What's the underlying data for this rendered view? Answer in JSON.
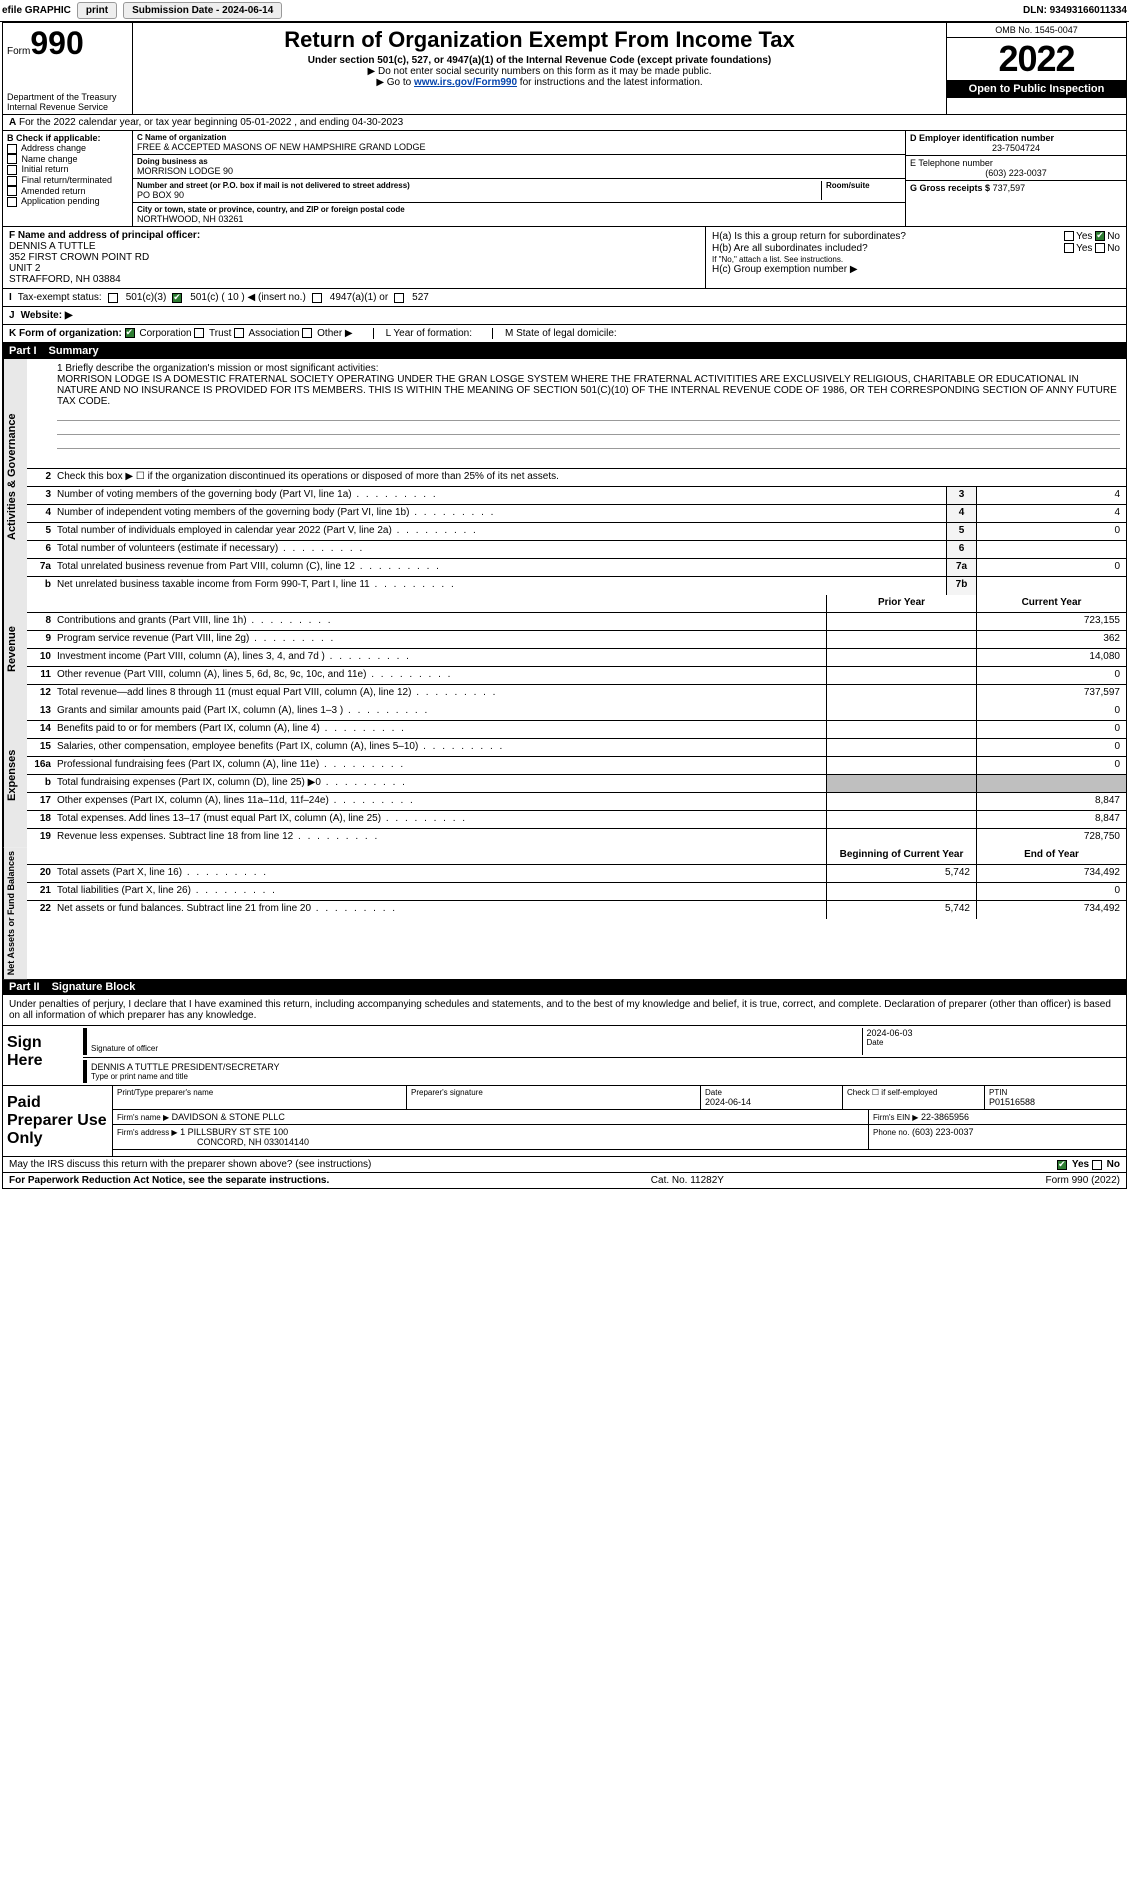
{
  "topbar": {
    "efile": "efile GRAPHIC",
    "print": "print",
    "subdate_label": "Submission Date - 2024-06-14",
    "dln": "DLN: 93493166011334"
  },
  "header": {
    "form_prefix": "Form",
    "form_num": "990",
    "dept": "Department of the Treasury",
    "irs": "Internal Revenue Service",
    "title": "Return of Organization Exempt From Income Tax",
    "sub1": "Under section 501(c), 527, or 4947(a)(1) of the Internal Revenue Code (except private foundations)",
    "sub2": "▶ Do not enter social security numbers on this form as it may be made public.",
    "sub3_pre": "▶ Go to ",
    "sub3_link": "www.irs.gov/Form990",
    "sub3_post": " for instructions and the latest information.",
    "omb": "OMB No. 1545-0047",
    "year": "2022",
    "open": "Open to Public Inspection"
  },
  "line_a": {
    "text": "For the 2022 calendar year, or tax year beginning 05-01-2022    , and ending 04-30-2023"
  },
  "section_b": {
    "header": "B Check if applicable:",
    "items": [
      "Address change",
      "Name change",
      "Initial return",
      "Final return/terminated",
      "Amended return",
      "Application pending"
    ]
  },
  "section_c": {
    "name_label": "C Name of organization",
    "name": "FREE & ACCEPTED MASONS OF NEW HAMPSHIRE GRAND LODGE",
    "dba_label": "Doing business as",
    "dba": "MORRISON LODGE 90",
    "addr_label": "Number and street (or P.O. box if mail is not delivered to street address)",
    "addr": "PO BOX 90",
    "room_label": "Room/suite",
    "city_label": "City or town, state or province, country, and ZIP or foreign postal code",
    "city": "NORTHWOOD, NH  03261"
  },
  "section_d": {
    "label": "D Employer identification number",
    "value": "23-7504724"
  },
  "section_e": {
    "label": "E Telephone number",
    "value": "(603) 223-0037"
  },
  "section_g": {
    "label": "G Gross receipts $",
    "value": "737,597"
  },
  "section_f": {
    "label": "F  Name and address of principal officer:",
    "name": "DENNIS A TUTTLE",
    "addr1": "352 FIRST CROWN POINT RD",
    "addr2": "UNIT 2",
    "city": "STRAFFORD, NH  03884"
  },
  "section_h": {
    "h_a": "H(a)  Is this a group return for subordinates?",
    "h_b": "H(b)  Are all subordinates included?",
    "h_b_note": "If \"No,\" attach a list. See instructions.",
    "h_c": "H(c)  Group exemption number ▶",
    "yes": "Yes",
    "no": "No"
  },
  "row_i": {
    "label": "Tax-exempt status:",
    "opt1": "501(c)(3)",
    "opt2": "501(c) ( 10 ) ◀ (insert no.)",
    "opt3": "4947(a)(1) or",
    "opt4": "527"
  },
  "row_j": {
    "label": "Website: ▶"
  },
  "row_k": {
    "label": "K Form of organization:",
    "opts": [
      "Corporation",
      "Trust",
      "Association",
      "Other ▶"
    ],
    "l": "L Year of formation:",
    "m": "M State of legal domicile:"
  },
  "parts": {
    "p1": "Part I",
    "p1_title": "Summary",
    "p2": "Part II",
    "p2_title": "Signature Block"
  },
  "summary": {
    "q1": "1  Briefly describe the organization's mission or most significant activities:",
    "mission": "MORRISON LODGE IS A DOMESTIC FRATERNAL SOCIETY OPERATING UNDER THE GRAN LOSGE SYSTEM WHERE THE FRATERNAL ACTIVITITIES ARE EXCLUSIVELY RELIGIOUS, CHARITABLE OR EDUCATIONAL IN NATURE AND NO INSURANCE IS PROVIDED FOR ITS MEMBERS. THIS IS WITHIN THE MEANING OF SECTION 501(C)(10) OF THE INTERNAL REVENUE CODE OF 1986, OR TEH CORRESPONDING SECTION OF ANNY FUTURE TAX CODE.",
    "q2": "Check this box ▶ ☐ if the organization discontinued its operations or disposed of more than 25% of its net assets.",
    "lines": [
      {
        "n": "3",
        "t": "Number of voting members of the governing body (Part VI, line 1a)",
        "box": "3",
        "v": "4"
      },
      {
        "n": "4",
        "t": "Number of independent voting members of the governing body (Part VI, line 1b)",
        "box": "4",
        "v": "4"
      },
      {
        "n": "5",
        "t": "Total number of individuals employed in calendar year 2022 (Part V, line 2a)",
        "box": "5",
        "v": "0"
      },
      {
        "n": "6",
        "t": "Total number of volunteers (estimate if necessary)",
        "box": "6",
        "v": ""
      },
      {
        "n": "7a",
        "t": "Total unrelated business revenue from Part VIII, column (C), line 12",
        "box": "7a",
        "v": "0"
      },
      {
        "n": "b",
        "t": "Net unrelated business taxable income from Form 990-T, Part I, line 11",
        "box": "7b",
        "v": ""
      }
    ],
    "col_prior": "Prior Year",
    "col_current": "Current Year",
    "revenue": [
      {
        "n": "8",
        "t": "Contributions and grants (Part VIII, line 1h)",
        "p": "",
        "c": "723,155"
      },
      {
        "n": "9",
        "t": "Program service revenue (Part VIII, line 2g)",
        "p": "",
        "c": "362"
      },
      {
        "n": "10",
        "t": "Investment income (Part VIII, column (A), lines 3, 4, and 7d )",
        "p": "",
        "c": "14,080"
      },
      {
        "n": "11",
        "t": "Other revenue (Part VIII, column (A), lines 5, 6d, 8c, 9c, 10c, and 11e)",
        "p": "",
        "c": "0"
      },
      {
        "n": "12",
        "t": "Total revenue—add lines 8 through 11 (must equal Part VIII, column (A), line 12)",
        "p": "",
        "c": "737,597"
      }
    ],
    "expenses": [
      {
        "n": "13",
        "t": "Grants and similar amounts paid (Part IX, column (A), lines 1–3 )",
        "p": "",
        "c": "0"
      },
      {
        "n": "14",
        "t": "Benefits paid to or for members (Part IX, column (A), line 4)",
        "p": "",
        "c": "0"
      },
      {
        "n": "15",
        "t": "Salaries, other compensation, employee benefits (Part IX, column (A), lines 5–10)",
        "p": "",
        "c": "0"
      },
      {
        "n": "16a",
        "t": "Professional fundraising fees (Part IX, column (A), line 11e)",
        "p": "",
        "c": "0"
      },
      {
        "n": "b",
        "t": "Total fundraising expenses (Part IX, column (D), line 25) ▶0",
        "p": "shade",
        "c": "shade"
      },
      {
        "n": "17",
        "t": "Other expenses (Part IX, column (A), lines 11a–11d, 11f–24e)",
        "p": "",
        "c": "8,847"
      },
      {
        "n": "18",
        "t": "Total expenses. Add lines 13–17 (must equal Part IX, column (A), line 25)",
        "p": "",
        "c": "8,847"
      },
      {
        "n": "19",
        "t": "Revenue less expenses. Subtract line 18 from line 12",
        "p": "",
        "c": "728,750"
      }
    ],
    "col_begin": "Beginning of Current Year",
    "col_end": "End of Year",
    "netassets": [
      {
        "n": "20",
        "t": "Total assets (Part X, line 16)",
        "p": "5,742",
        "c": "734,492"
      },
      {
        "n": "21",
        "t": "Total liabilities (Part X, line 26)",
        "p": "",
        "c": "0"
      },
      {
        "n": "22",
        "t": "Net assets or fund balances. Subtract line 21 from line 20",
        "p": "5,742",
        "c": "734,492"
      }
    ]
  },
  "side_labels": {
    "gov": "Activities & Governance",
    "rev": "Revenue",
    "exp": "Expenses",
    "net": "Net Assets or Fund Balances"
  },
  "sig": {
    "perjury": "Under penalties of perjury, I declare that I have examined this return, including accompanying schedules and statements, and to the best of my knowledge and belief, it is true, correct, and complete. Declaration of preparer (other than officer) is based on all information of which preparer has any knowledge.",
    "sign_here": "Sign Here",
    "sig_officer": "Signature of officer",
    "date": "2024-06-03",
    "date_label": "Date",
    "name": "DENNIS A TUTTLE  PRESIDENT/SECRETARY",
    "name_label": "Type or print name and title"
  },
  "paid": {
    "title": "Paid Preparer Use Only",
    "h_name": "Print/Type preparer's name",
    "h_sig": "Preparer's signature",
    "h_date": "Date",
    "date": "2024-06-14",
    "check": "Check ☐ if self-employed",
    "ptin_label": "PTIN",
    "ptin": "P01516588",
    "firm_name_label": "Firm's name    ▶",
    "firm_name": "DAVIDSON & STONE PLLC",
    "firm_ein_label": "Firm's EIN ▶",
    "firm_ein": "22-3865956",
    "firm_addr_label": "Firm's address ▶",
    "firm_addr1": "1 PILLSBURY ST STE 100",
    "firm_addr2": "CONCORD, NH  033014140",
    "phone_label": "Phone no.",
    "phone": "(603) 223-0037"
  },
  "footer": {
    "discuss": "May the IRS discuss this return with the preparer shown above? (see instructions)",
    "yes": "Yes",
    "no": "No",
    "pra": "For Paperwork Reduction Act Notice, see the separate instructions.",
    "cat": "Cat. No. 11282Y",
    "form": "Form 990 (2022)"
  }
}
